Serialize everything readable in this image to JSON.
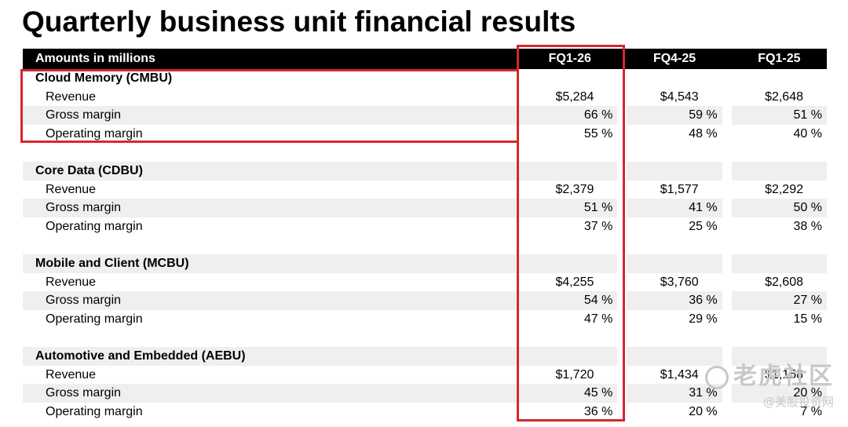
{
  "title": "Quarterly business unit financial results",
  "table": {
    "header_label": "Amounts in millions",
    "columns": [
      "FQ1-26",
      "FQ4-25",
      "FQ1-25"
    ],
    "sections": [
      {
        "name": "Cloud Memory (CMBU)",
        "rows": [
          {
            "label": "Revenue",
            "values": [
              "$5,284",
              "$4,543",
              "$2,648"
            ]
          },
          {
            "label": "Gross margin",
            "values": [
              "66 %",
              "59 %",
              "51 %"
            ]
          },
          {
            "label": "Operating margin",
            "values": [
              "55 %",
              "48 %",
              "40 %"
            ]
          }
        ]
      },
      {
        "name": "Core Data (CDBU)",
        "rows": [
          {
            "label": "Revenue",
            "values": [
              "$2,379",
              "$1,577",
              "$2,292"
            ]
          },
          {
            "label": "Gross margin",
            "values": [
              "51 %",
              "41 %",
              "50 %"
            ]
          },
          {
            "label": "Operating margin",
            "values": [
              "37 %",
              "25 %",
              "38 %"
            ]
          }
        ]
      },
      {
        "name": "Mobile and Client (MCBU)",
        "rows": [
          {
            "label": "Revenue",
            "values": [
              "$4,255",
              "$3,760",
              "$2,608"
            ]
          },
          {
            "label": "Gross margin",
            "values": [
              "54 %",
              "36 %",
              "27 %"
            ]
          },
          {
            "label": "Operating margin",
            "values": [
              "47 %",
              "29 %",
              "15 %"
            ]
          }
        ]
      },
      {
        "name": "Automotive and Embedded (AEBU)",
        "rows": [
          {
            "label": "Revenue",
            "values": [
              "$1,720",
              "$1,434",
              "$1,158"
            ]
          },
          {
            "label": "Gross margin",
            "values": [
              "45 %",
              "31 %",
              "20 %"
            ]
          },
          {
            "label": "Operating margin",
            "values": [
              "36 %",
              "20 %",
              "7 %"
            ]
          }
        ]
      }
    ]
  },
  "highlight_color": "#d8262b",
  "watermark": {
    "line1": "老虎社区",
    "line2": "@美股投资网"
  }
}
